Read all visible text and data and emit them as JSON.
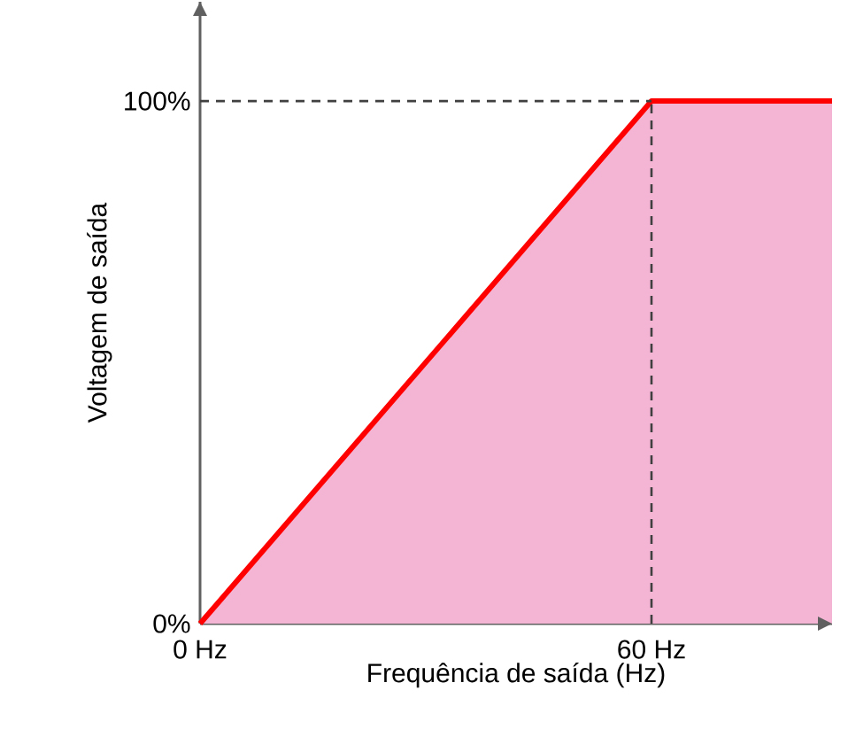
{
  "chart_data": {
    "type": "area",
    "xlabel": "Frequência de saída (Hz)",
    "ylabel": "Voltagem de saída",
    "x": [
      0,
      60,
      84
    ],
    "series": [
      {
        "color": "#ff0000",
        "values": [
          0,
          100,
          100
        ]
      }
    ],
    "xlim": [
      0,
      84
    ],
    "ylim": [
      0,
      119
    ],
    "xticks": [
      {
        "value": 0,
        "label": "0 Hz"
      },
      {
        "value": 60,
        "label": "60 Hz"
      }
    ],
    "yticks": [
      {
        "value": 0,
        "label": "0%"
      },
      {
        "value": 100,
        "label": "100%"
      }
    ],
    "ref_lines": [
      {
        "axis": "y",
        "value": 100,
        "color": "#404040",
        "line_style": "dashed"
      },
      {
        "axis": "x",
        "value": 60,
        "color": "#404040",
        "line_style": "dashed"
      }
    ]
  }
}
